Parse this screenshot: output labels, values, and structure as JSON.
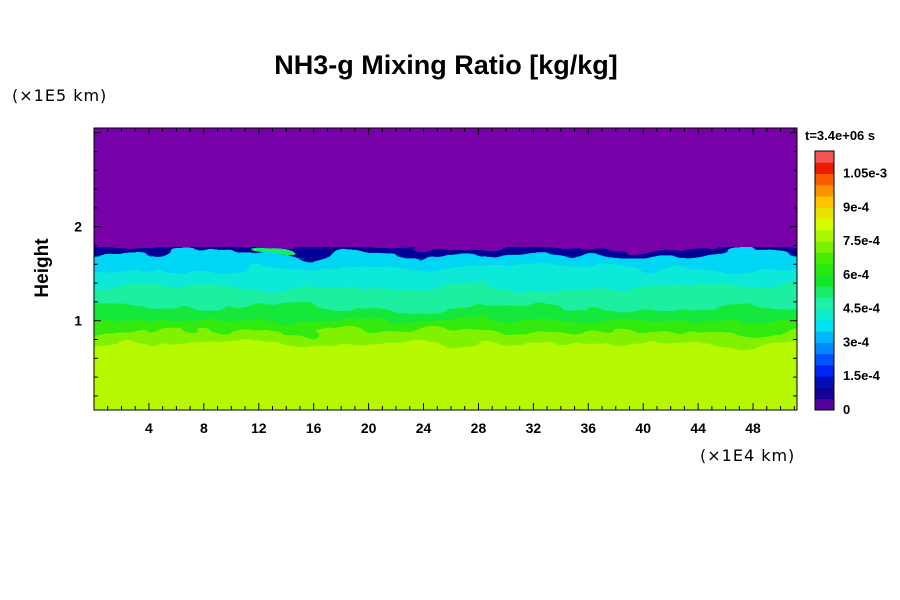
{
  "chart_data": {
    "type": "heatmap",
    "title": "NH3-g Mixing Ratio [kg/kg]",
    "time_label": "t=3.4e+06 s",
    "xlabel": "",
    "x_unit": "(×1E4 km)",
    "ylabel": "Height",
    "y_unit": "(×1E5 km)",
    "x_ticks": [
      "4",
      "8",
      "12",
      "16",
      "20",
      "24",
      "28",
      "32",
      "36",
      "40",
      "44",
      "48"
    ],
    "x_tick_values": [
      4,
      8,
      12,
      16,
      20,
      24,
      28,
      32,
      36,
      40,
      44,
      48
    ],
    "xlim": [
      0,
      51.2
    ],
    "y_ticks": [
      "1",
      "2"
    ],
    "y_tick_values": [
      1,
      2
    ],
    "ylim": [
      0.05,
      3.05
    ],
    "colorbar": {
      "tick_labels": [
        "0",
        "1.5e-4",
        "3e-4",
        "4.5e-4",
        "6e-4",
        "7.5e-4",
        "9e-4",
        "1.05e-3"
      ],
      "tick_values": [
        0,
        0.00015,
        0.0003,
        0.00045,
        0.0006,
        0.00075,
        0.0009,
        0.00105
      ],
      "range": [
        0,
        0.00115
      ],
      "levels": 23
    },
    "layers": [
      {
        "from": 0.05,
        "to": 0.75,
        "value": 0.00079
      },
      {
        "from": 0.75,
        "to": 0.88,
        "value": 0.00073
      },
      {
        "from": 0.88,
        "to": 1.0,
        "value": 0.00064
      },
      {
        "from": 1.0,
        "to": 1.15,
        "value": 0.00056
      },
      {
        "from": 1.15,
        "to": 1.35,
        "value": 0.00048
      },
      {
        "from": 1.35,
        "to": 1.55,
        "value": 0.00041
      },
      {
        "from": 1.55,
        "to": 1.7,
        "value": 0.00036
      },
      {
        "from": 1.7,
        "to": 1.78,
        "value": 0.0001
      },
      {
        "from": 1.78,
        "to": 3.05,
        "value": 0
      }
    ],
    "colors": {
      "low": "#7800a8",
      "cloud_top": "#000fa0",
      "cyan": "#3cf0e6",
      "green": "#14e614",
      "yellow": "#d4ff00"
    }
  }
}
